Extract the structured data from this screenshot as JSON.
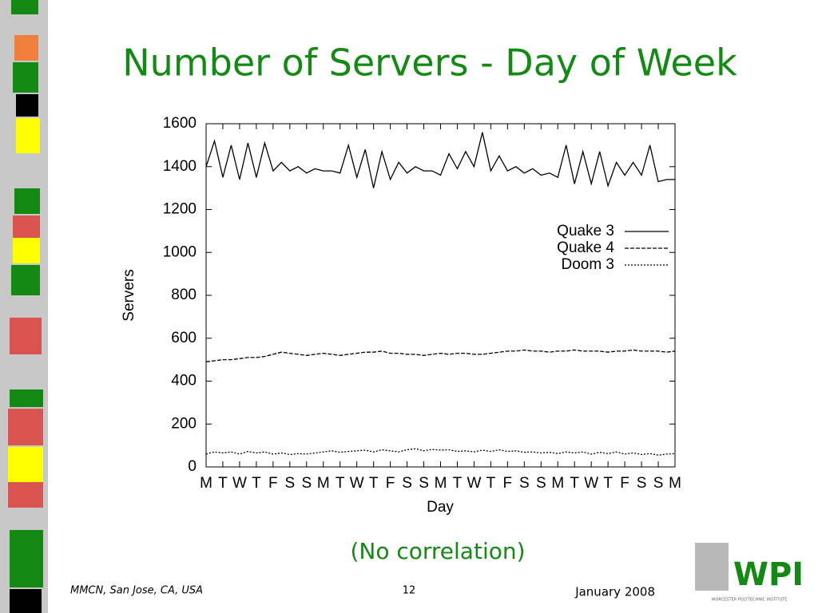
{
  "slide": {
    "title": "Number of Servers - Day of Week",
    "note": "(No correlation)",
    "footer_left": "MMCN, San Jose, CA, USA",
    "page": "12",
    "footer_right": "January 2008",
    "logo": "WPI",
    "logo_sub": "WORCESTER POLYTECHNIC INSTITUTE"
  },
  "chart_data": {
    "type": "line",
    "xlabel": "Day",
    "ylabel": "Servers",
    "x": [
      0,
      0.5,
      1,
      1.5,
      2,
      2.5,
      3,
      3.5,
      4,
      4.5,
      5,
      5.5,
      6,
      6.5,
      7,
      7.5,
      8,
      8.5,
      9,
      9.5,
      10,
      10.5,
      11,
      11.5,
      12,
      12.5,
      13,
      13.5,
      14,
      14.5,
      15,
      15.5,
      16,
      16.5,
      17,
      17.5,
      18,
      18.5,
      19,
      19.5,
      20,
      20.5,
      21,
      21.5,
      22,
      22.5,
      23,
      23.5,
      24,
      24.5,
      25,
      25.5,
      26,
      26.5,
      27,
      27.5,
      28
    ],
    "series": [
      {
        "name": "Quake 3",
        "color": "#000000",
        "dash": "solid",
        "values": [
          1400,
          1520,
          1350,
          1500,
          1340,
          1510,
          1350,
          1510,
          1380,
          1420,
          1380,
          1400,
          1370,
          1390,
          1380,
          1380,
          1370,
          1500,
          1350,
          1480,
          1300,
          1470,
          1340,
          1420,
          1370,
          1400,
          1380,
          1380,
          1360,
          1460,
          1390,
          1470,
          1400,
          1560,
          1380,
          1450,
          1380,
          1400,
          1370,
          1390,
          1360,
          1370,
          1350,
          1500,
          1320,
          1470,
          1320,
          1470,
          1310,
          1420,
          1360,
          1420,
          1360,
          1500,
          1330,
          1340,
          1340
        ]
      },
      {
        "name": "Quake 4",
        "color": "#000000",
        "dash": "dashed",
        "values": [
          490,
          495,
          500,
          500,
          505,
          510,
          510,
          515,
          525,
          535,
          530,
          525,
          520,
          525,
          530,
          525,
          520,
          525,
          530,
          535,
          535,
          540,
          530,
          530,
          525,
          525,
          520,
          525,
          530,
          525,
          530,
          530,
          525,
          525,
          530,
          535,
          540,
          540,
          545,
          540,
          540,
          535,
          540,
          540,
          545,
          540,
          540,
          540,
          535,
          540,
          540,
          545,
          540,
          540,
          540,
          535,
          540
        ]
      },
      {
        "name": "Doom 3",
        "color": "#000000",
        "dash": "dotted",
        "values": [
          60,
          70,
          65,
          70,
          60,
          72,
          65,
          70,
          60,
          65,
          58,
          62,
          60,
          65,
          70,
          75,
          68,
          72,
          75,
          78,
          70,
          80,
          75,
          70,
          80,
          85,
          75,
          82,
          78,
          80,
          72,
          75,
          70,
          78,
          72,
          80,
          72,
          75,
          68,
          70,
          65,
          68,
          62,
          70,
          65,
          70,
          60,
          68,
          62,
          70,
          60,
          65,
          58,
          62,
          55,
          60,
          62
        ]
      }
    ],
    "xlim": [
      0,
      28
    ],
    "ylim": [
      0,
      1600
    ],
    "yticks": [
      0,
      200,
      400,
      600,
      800,
      1000,
      1200,
      1400,
      1600
    ],
    "xticks": [
      {
        "value": 0,
        "label": "M"
      },
      {
        "value": 1,
        "label": "T"
      },
      {
        "value": 2,
        "label": "W"
      },
      {
        "value": 3,
        "label": "T"
      },
      {
        "value": 4,
        "label": "F"
      },
      {
        "value": 5,
        "label": "S"
      },
      {
        "value": 6,
        "label": "S"
      },
      {
        "value": 7,
        "label": "M"
      },
      {
        "value": 8,
        "label": "T"
      },
      {
        "value": 9,
        "label": "W"
      },
      {
        "value": 10,
        "label": "T"
      },
      {
        "value": 11,
        "label": "F"
      },
      {
        "value": 12,
        "label": "S"
      },
      {
        "value": 13,
        "label": "S"
      },
      {
        "value": 14,
        "label": "M"
      },
      {
        "value": 15,
        "label": "T"
      },
      {
        "value": 16,
        "label": "W"
      },
      {
        "value": 17,
        "label": "T"
      },
      {
        "value": 18,
        "label": "F"
      },
      {
        "value": 19,
        "label": "S"
      },
      {
        "value": 20,
        "label": "S"
      },
      {
        "value": 21,
        "label": "M"
      },
      {
        "value": 22,
        "label": "T"
      },
      {
        "value": 23,
        "label": "W"
      },
      {
        "value": 24,
        "label": "T"
      },
      {
        "value": 25,
        "label": "F"
      },
      {
        "value": 26,
        "label": "S"
      },
      {
        "value": 27,
        "label": "S"
      },
      {
        "value": 28,
        "label": "M"
      }
    ],
    "grid": false,
    "legend": "upper right"
  }
}
